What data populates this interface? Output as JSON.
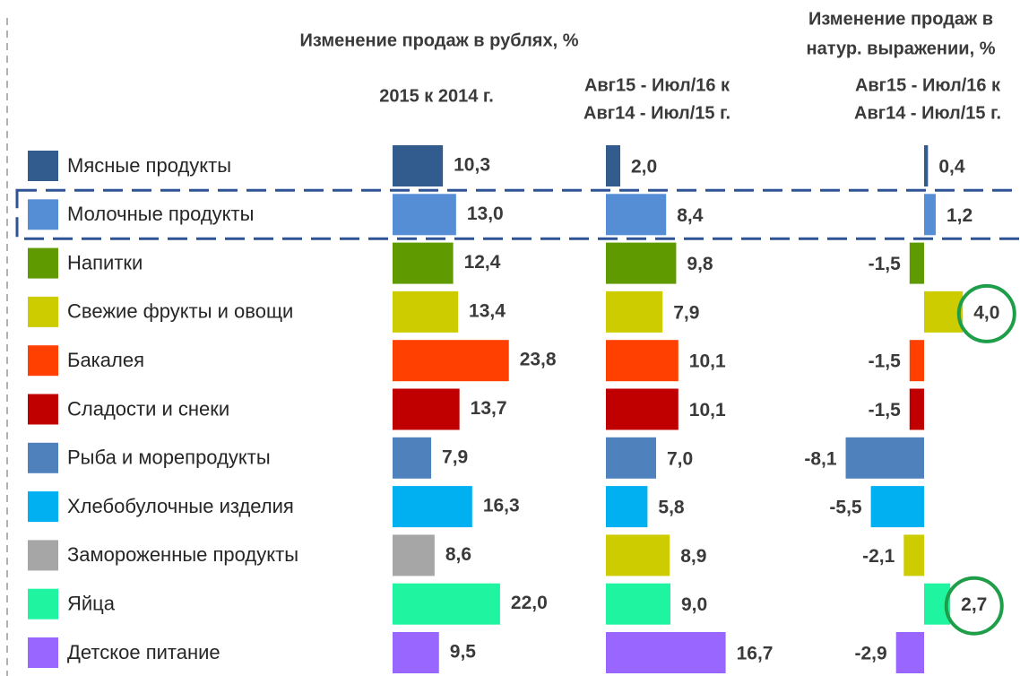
{
  "chart_data": {
    "type": "bar",
    "title": "Изменение продаж в рублях, %",
    "title2": [
      "Изменение продаж в",
      "натур. выражении, %"
    ],
    "categories": [
      "Мясные продукты",
      "Молочные продукты",
      "Напитки",
      "Свежие фрукты и овощи",
      "Бакалея",
      "Сладости и снеки",
      "Рыба и морепродукты",
      "Хлебобулочные изделия",
      "Замороженные продукты",
      "Яйца",
      "Детское питание"
    ],
    "highlight_category": 1,
    "series": [
      {
        "name": [
          "2015 к 2014 г."
        ],
        "colors": [
          "#335c8e",
          "#558ed5",
          "#5f9a00",
          "#cccc00",
          "#ff4000",
          "#c00000",
          "#4f81bd",
          "#00b0f0",
          "#a6a6a6",
          "#1ff5a0",
          "#9966ff"
        ],
        "values": [
          10.3,
          13.0,
          12.4,
          13.4,
          23.8,
          13.7,
          7.9,
          16.3,
          8.6,
          22.0,
          9.5
        ],
        "value_labels": [
          "10,3",
          "13,0",
          "12,4",
          "13,4",
          "23,8",
          "13,7",
          "7,9",
          "16,3",
          "8,6",
          "22,0",
          "9,5"
        ]
      },
      {
        "name": [
          "Авг15 - Июл/16 к",
          "Авг14 - Июл/15 г."
        ],
        "colors": [
          "#335c8e",
          "#558ed5",
          "#5f9a00",
          "#cccc00",
          "#ff4000",
          "#c00000",
          "#4f81bd",
          "#00b0f0",
          "#cccc00",
          "#1ff5a0",
          "#9966ff"
        ],
        "values": [
          2.0,
          8.4,
          9.8,
          7.9,
          10.1,
          10.1,
          7.0,
          5.8,
          8.9,
          9.0,
          16.7
        ],
        "value_labels": [
          "2,0",
          "8,4",
          "9,8",
          "7,9",
          "10,1",
          "10,1",
          "7,0",
          "5,8",
          "8,9",
          "9,0",
          "16,7"
        ]
      },
      {
        "name": [
          "Авг15 - Июл/16 к",
          "Авг14 - Июл/15 г."
        ],
        "colors": [
          "#335c8e",
          "#558ed5",
          "#5f9a00",
          "#cccc00",
          "#ff4000",
          "#c00000",
          "#4f81bd",
          "#00b0f0",
          "#cccc00",
          "#1ff5a0",
          "#9966ff"
        ],
        "values": [
          0.4,
          1.2,
          -1.5,
          4.0,
          -1.5,
          -1.5,
          -8.1,
          -5.5,
          -2.1,
          2.7,
          -2.9
        ],
        "value_labels": [
          "0,4",
          "1,2",
          "-1,5",
          "4,0",
          "-1,5",
          "-1,5",
          "-8,1",
          "-5,5",
          "-2,1",
          "2,7",
          "-2,9"
        ],
        "circled": [
          3,
          9
        ]
      }
    ]
  }
}
